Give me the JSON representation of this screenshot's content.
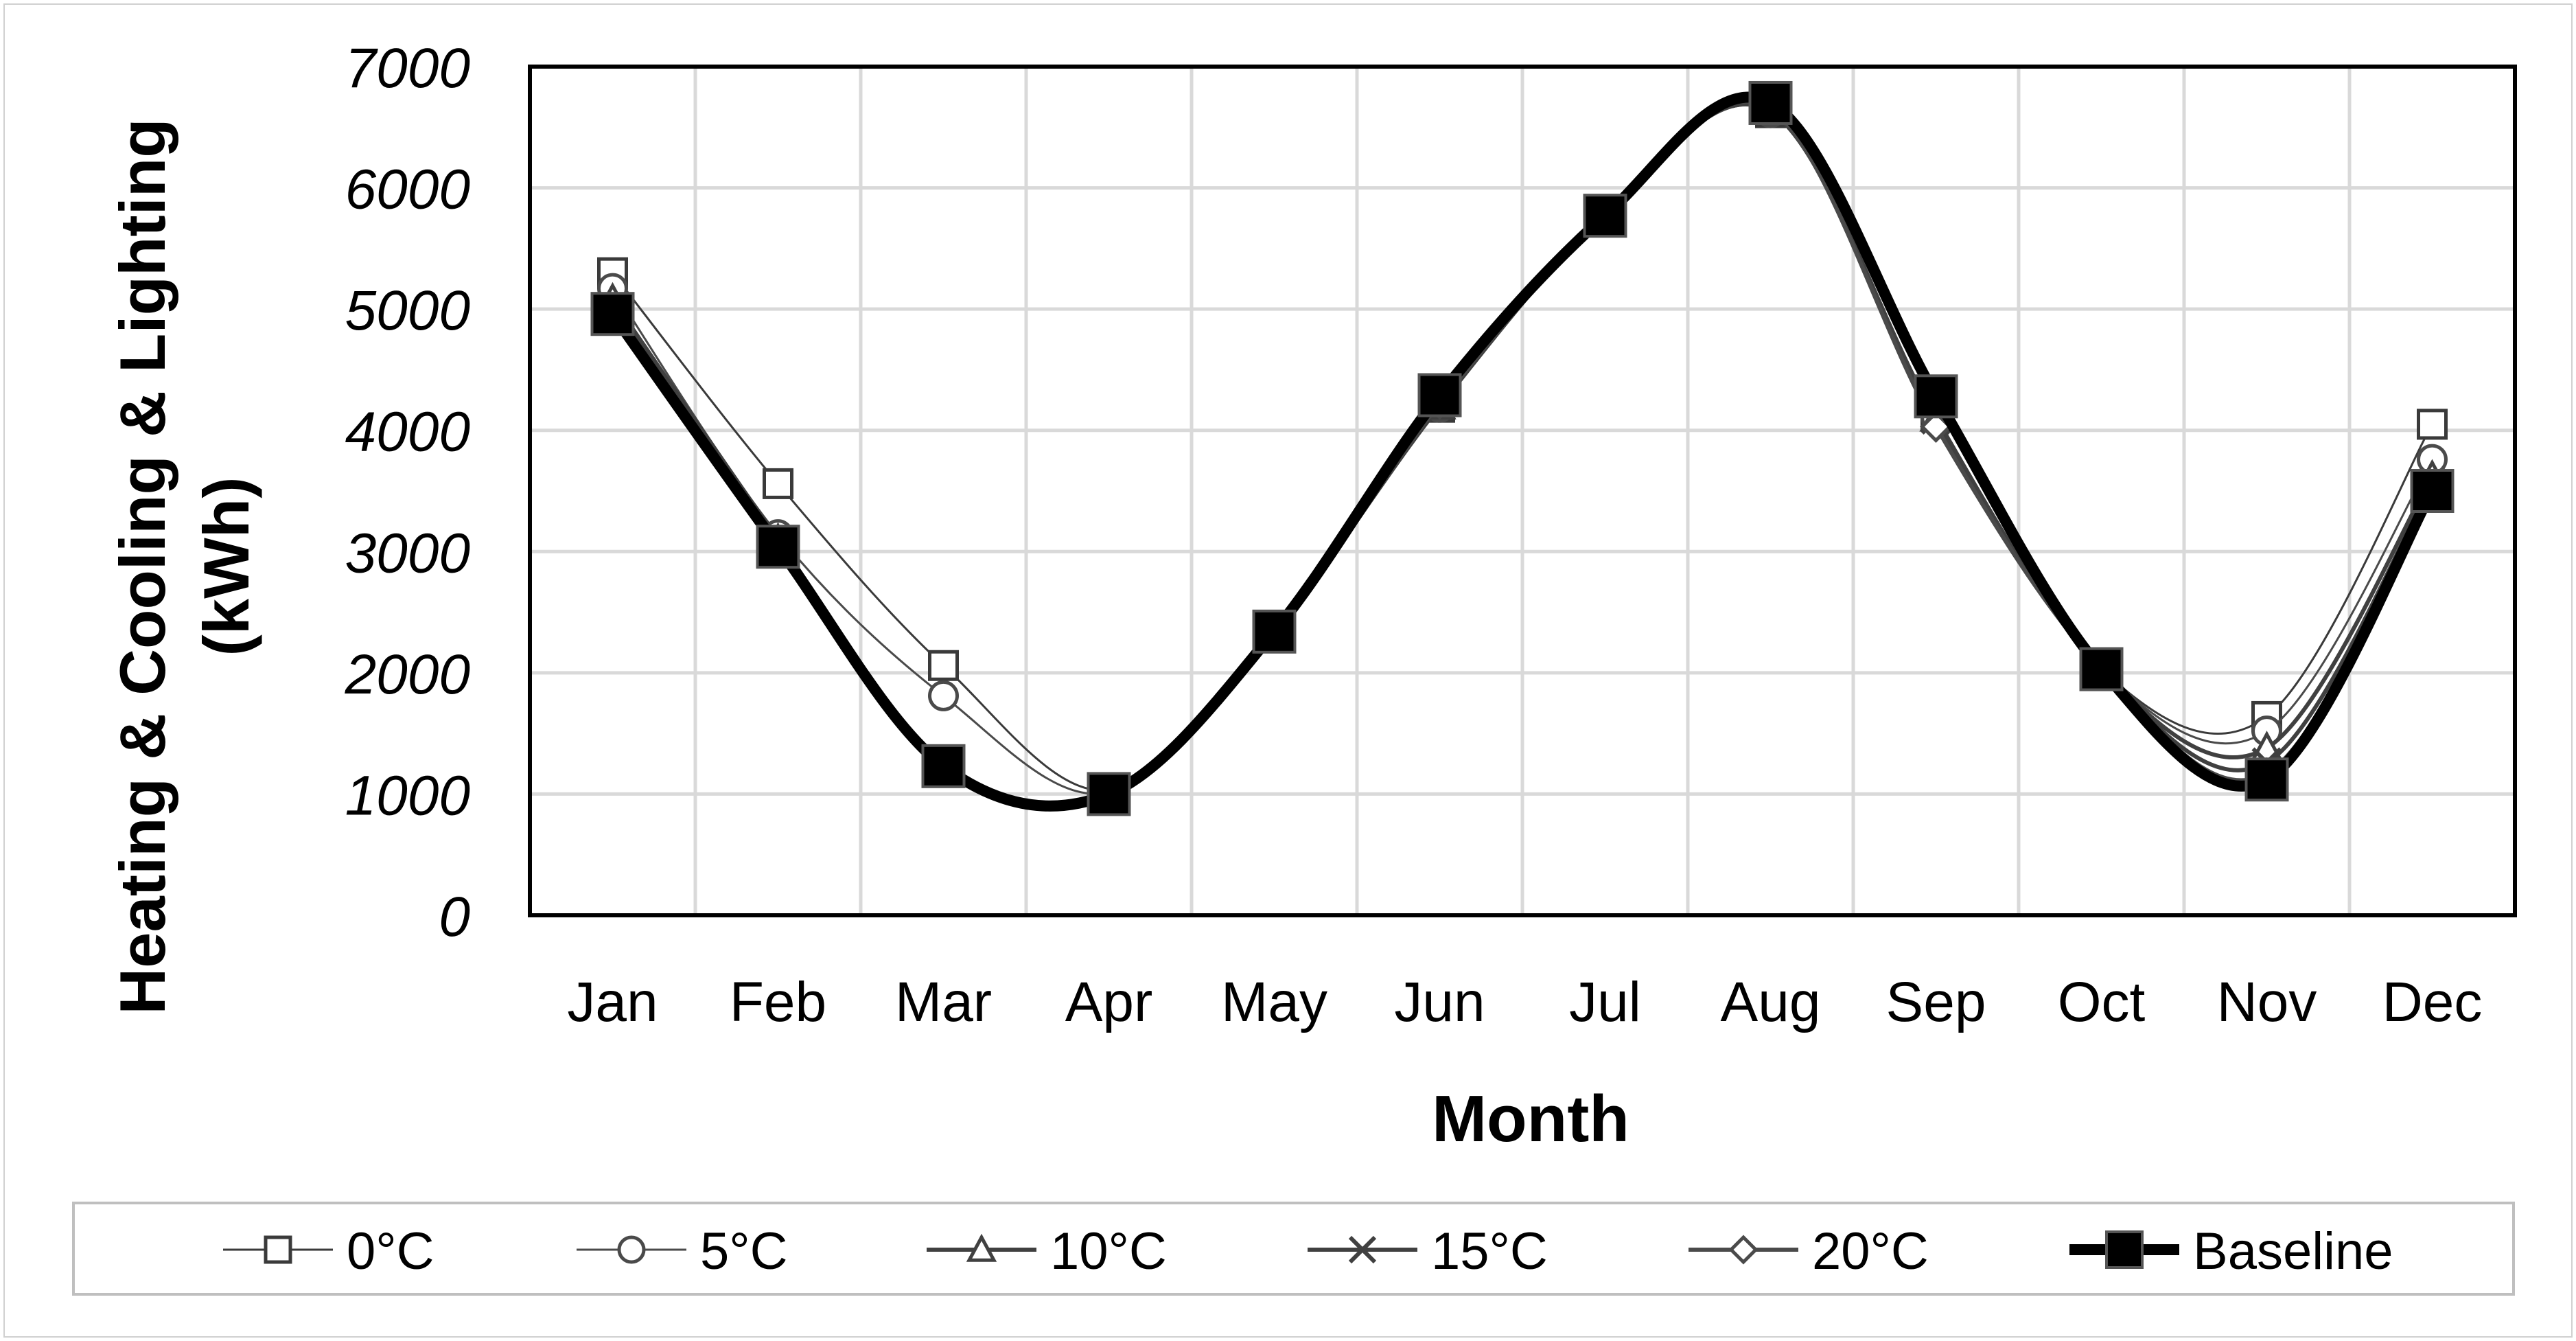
{
  "chart_data": {
    "type": "line",
    "title": "",
    "xlabel": "Month",
    "ylabel": "Heating & Cooling & Lighting (kWh)",
    "ylabel_lines": [
      "Heating & Cooling & Lighting",
      "(kWh)"
    ],
    "categories": [
      "Jan",
      "Feb",
      "Mar",
      "Apr",
      "May",
      "Jun",
      "Jul",
      "Aug",
      "Sep",
      "Oct",
      "Nov",
      "Dec"
    ],
    "ylim": [
      0,
      7000
    ],
    "yticks": [
      "0",
      "1000",
      "2000",
      "3000",
      "4000",
      "5000",
      "6000",
      "7000"
    ],
    "grid": true,
    "legend_position": "bottom",
    "series": [
      {
        "name": "0°C",
        "marker": "square",
        "color": "#3a3a3a",
        "values": [
          5300,
          3560,
          2060,
          1030,
          2340,
          4190,
          5760,
          6620,
          4120,
          2030,
          1640,
          4050
        ]
      },
      {
        "name": "5°C",
        "marker": "circle",
        "color": "#4a4a4a",
        "values": [
          5170,
          3140,
          1810,
          1010,
          2340,
          4190,
          5760,
          6620,
          4110,
          2030,
          1520,
          3760
        ]
      },
      {
        "name": "10°C",
        "marker": "triangle",
        "color": "#404040",
        "values": [
          5080,
          3100,
          1230,
          1000,
          2340,
          4200,
          5770,
          6630,
          4100,
          2030,
          1380,
          3620
        ]
      },
      {
        "name": "15°C",
        "marker": "cross",
        "color": "#404040",
        "values": [
          5020,
          3070,
          1230,
          1000,
          2340,
          4210,
          5770,
          6640,
          4090,
          2030,
          1260,
          3560
        ]
      },
      {
        "name": "20°C",
        "marker": "diamond",
        "color": "#4a4a4a",
        "values": [
          4990,
          3060,
          1230,
          1000,
          2340,
          4220,
          5770,
          6650,
          4030,
          2030,
          1170,
          3530
        ]
      },
      {
        "name": "Baseline",
        "marker": "filled-square",
        "color": "#000000",
        "values": [
          4960,
          3040,
          1230,
          1000,
          2340,
          4290,
          5770,
          6700,
          4280,
          2030,
          1120,
          3500
        ]
      }
    ]
  }
}
